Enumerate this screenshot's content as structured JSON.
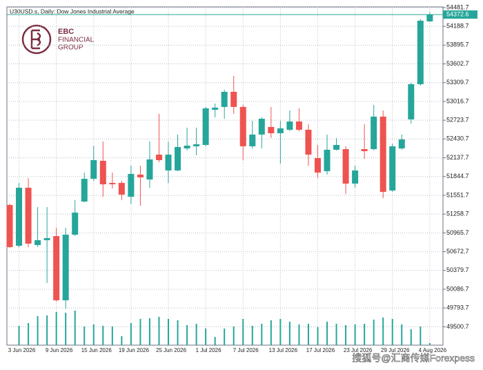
{
  "chart_data": {
    "type": "candlestick",
    "title": "U30USD.s, Daily:  Dow Jones Industrial Average",
    "logo": {
      "name": "EBC",
      "line1": "FINANCIAL",
      "line2": "GROUP"
    },
    "watermark": "搜狐号@汇商传媒Forexpess",
    "categories": [
      null,
      "3 Jun 2026",
      null,
      null,
      null,
      "9 Jun 2026",
      null,
      null,
      null,
      "15 Jun 2026",
      null,
      null,
      null,
      "19 Jun 2026",
      null,
      null,
      null,
      "25 Jun 2026",
      null,
      null,
      null,
      "1 Jul 2026",
      null,
      null,
      null,
      "7 Jul 2026",
      null,
      null,
      null,
      "13 Jul 2026",
      null,
      null,
      null,
      "17 Jul 2026",
      null,
      null,
      null,
      "23 Jul 2026",
      null,
      null,
      null,
      "29 Jul 2026",
      null,
      null,
      null,
      "4 Aug 2026"
    ],
    "open": [
      51401,
      50765,
      51670,
      50776,
      50852,
      50916,
      49914,
      50938,
      51455,
      51810,
      52090,
      51746,
      51746,
      51530,
      51875,
      51799,
      52187,
      51940,
      51940,
      52284,
      52317,
      52338,
      52887,
      52931,
      53167,
      52931,
      52317,
      52500,
      52618,
      52521,
      52575,
      52704,
      52575,
      52133,
      51929,
      52263,
      52273,
      51735,
      52273,
      52273,
      52780,
      51627,
      52284,
      52737,
      53286,
      54266
    ],
    "high": [
      51420,
      51746,
      51821,
      51369,
      51369,
      51045,
      51045,
      51476,
      51907,
      52327,
      52392,
      51907,
      51778,
      52015,
      52015,
      52392,
      52823,
      52392,
      52500,
      52607,
      52607,
      52931,
      52984,
      53200,
      53415,
      52963,
      52715,
      52769,
      52931,
      52715,
      52877,
      52909,
      52661,
      52338,
      52500,
      52446,
      52317,
      52015,
      52661,
      52963,
      52877,
      52360,
      52500,
      53308,
      54299,
      54406
    ],
    "low": [
      50730,
      50744,
      50744,
      50744,
      50184,
      49893,
      49785,
      50916,
      51444,
      51778,
      51530,
      51659,
      51476,
      51412,
      51390,
      51670,
      52069,
      51746,
      51929,
      52252,
      52177,
      52317,
      52769,
      52747,
      52823,
      52101,
      52284,
      52284,
      52446,
      52047,
      52554,
      52554,
      52015,
      51821,
      51875,
      52252,
      51573,
      51670,
      52123,
      52252,
      51509,
      51606,
      52263,
      52672,
      53264,
      54256
    ],
    "close": [
      50744,
      51670,
      50798,
      50852,
      50884,
      49914,
      50938,
      51282,
      51810,
      52101,
      51724,
      51724,
      51563,
      51886,
      51832,
      52112,
      52101,
      52187,
      52306,
      52327,
      52349,
      52909,
      52920,
      53167,
      52931,
      52317,
      52500,
      52747,
      52521,
      52597,
      52704,
      52575,
      52187,
      51907,
      52263,
      52338,
      51735,
      51940,
      52241,
      52780,
      51606,
      52317,
      52424,
      53286,
      54277,
      54372.6
    ],
    "volume": [
      null,
      28,
      32,
      42,
      43,
      48,
      47,
      50,
      27,
      30,
      28,
      27,
      13,
      32,
      38,
      39,
      41,
      38,
      36,
      29,
      31,
      24,
      12,
      24,
      27,
      38,
      28,
      31,
      36,
      38,
      34,
      30,
      31,
      26,
      34,
      31,
      29,
      30,
      31,
      37,
      40,
      38,
      30,
      23,
      27,
      3
    ],
    "vlim": [
      0,
      490
    ],
    "up_color": "#26a69a",
    "down_color": "#ef5350",
    "ylim": [
      49214,
      54492
    ],
    "yticks": [
      54481.7,
      54188.7,
      53895.7,
      53602.7,
      53309.7,
      53016.7,
      52723.7,
      52430.7,
      52137.7,
      51844.7,
      51551.7,
      51258.7,
      50965.7,
      50672.7,
      50379.7,
      50086.7,
      49793.7,
      49500.7
    ],
    "grid": true
  }
}
